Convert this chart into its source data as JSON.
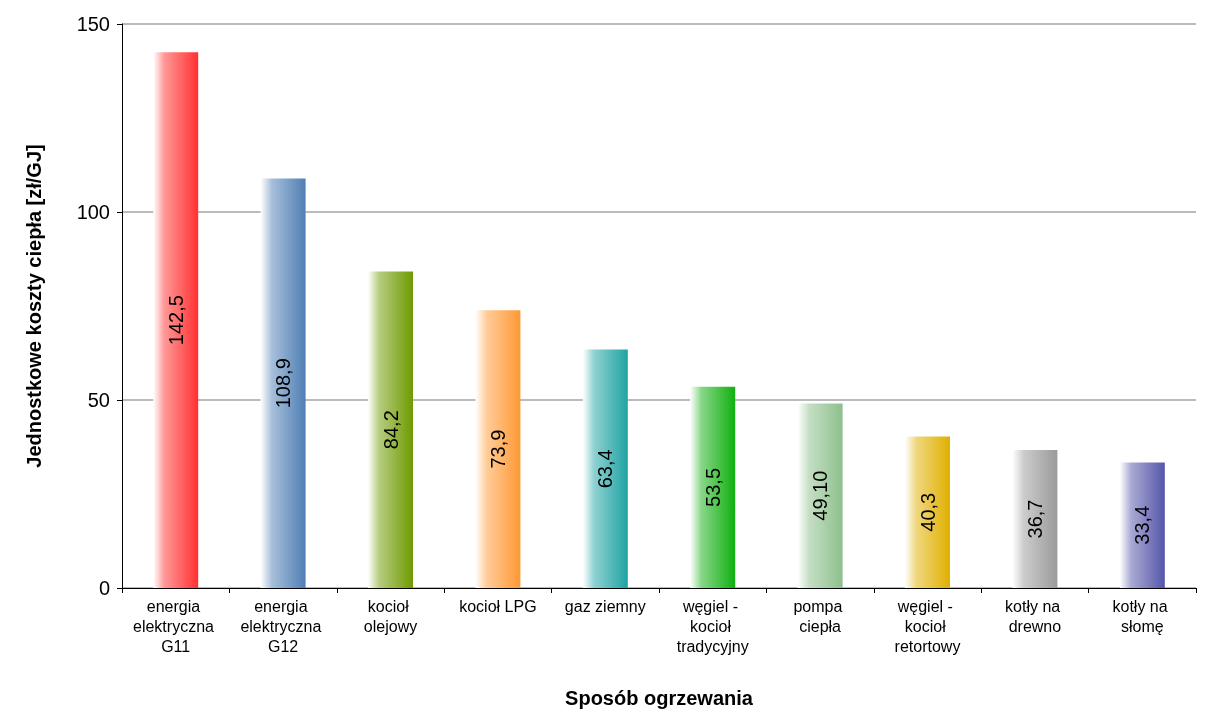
{
  "chart_data": {
    "type": "bar",
    "xlabel": "Sposób ogrzewania",
    "ylabel": "Jednostkowe koszty ciepła [zł/GJ]",
    "categories": [
      "energia elektryczna G11",
      "energia elektryczna G12",
      "kocioł olejowy",
      "kocioł LPG",
      "gaz ziemny",
      "węgiel - kocioł tradycyjny",
      "pompa ciepła",
      "węgiel - kocioł retortowy",
      "kotły na drewno",
      "kotły na słomę"
    ],
    "values": [
      142.5,
      108.9,
      84.2,
      73.9,
      63.4,
      53.5,
      49.1,
      40.3,
      36.7,
      33.4
    ],
    "value_labels": [
      "142,5",
      "108,9",
      "84,2",
      "73,9",
      "63,4",
      "53,5",
      "49,10",
      "40,3",
      "36,7",
      "33,4"
    ],
    "colors": [
      "#ff3030",
      "#4f7fb5",
      "#6e9a00",
      "#ff9933",
      "#1fa3a3",
      "#10b010",
      "#8cc08c",
      "#e0b000",
      "#9a9a9a",
      "#5555aa"
    ],
    "ylim": [
      0,
      150
    ],
    "yticks": [
      0,
      50,
      100,
      150
    ],
    "grid": "y"
  }
}
